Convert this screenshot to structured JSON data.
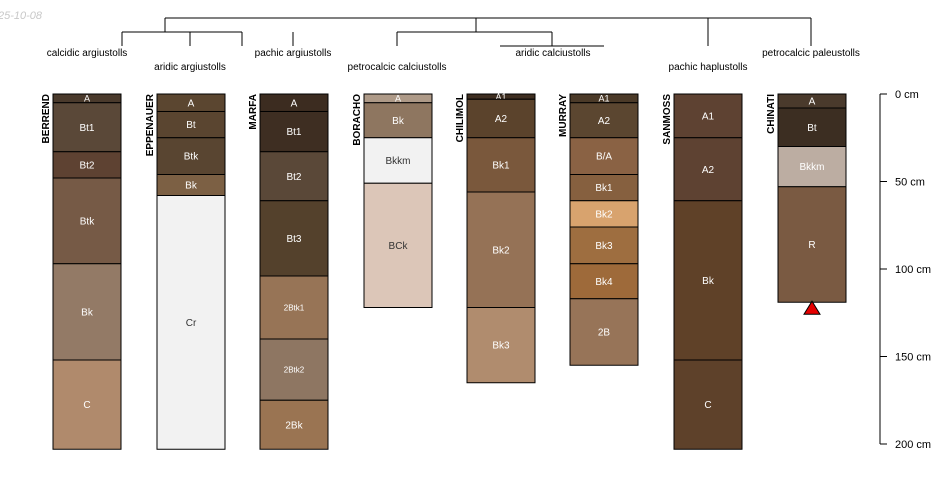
{
  "date_stamp": "25-10-08",
  "chart_data": {
    "type": "soil-profile-sketch",
    "depth_axis": {
      "unit": "cm",
      "min": 0,
      "max": 200,
      "ticks": [
        0,
        50,
        100,
        150,
        200
      ]
    },
    "taxonomic_groups": [
      {
        "name": "calcidic argiustolls",
        "profiles": [
          "BERREND"
        ]
      },
      {
        "name": "aridic argiustolls",
        "profiles": [
          "EPPENAUER"
        ]
      },
      {
        "name": "pachic argiustolls",
        "profiles": [
          "MARFA"
        ]
      },
      {
        "name": "petrocalcic calciustolls",
        "profiles": [
          "BORACHO"
        ]
      },
      {
        "name": "aridic calciustolls",
        "profiles": [
          "CHILIMOL",
          "MURRAY"
        ]
      },
      {
        "name": "pachic haplustolls",
        "profiles": [
          "SANMOSS"
        ]
      },
      {
        "name": "petrocalcic paleustolls",
        "profiles": [
          "CHINATI"
        ]
      }
    ],
    "profiles": [
      {
        "name": "BERREND",
        "horizons": [
          {
            "name": "A",
            "top": 0,
            "bottom": 5,
            "color": "#4a3a2c"
          },
          {
            "name": "Bt1",
            "top": 5,
            "bottom": 33,
            "color": "#5a4838"
          },
          {
            "name": "Bt2",
            "top": 33,
            "bottom": 48,
            "color": "#5e4232"
          },
          {
            "name": "Btk",
            "top": 48,
            "bottom": 97,
            "color": "#765a46"
          },
          {
            "name": "Bk",
            "top": 97,
            "bottom": 152,
            "color": "#937a66"
          },
          {
            "name": "C",
            "top": 152,
            "bottom": 203,
            "color": "#b08a6c"
          }
        ]
      },
      {
        "name": "EPPENAUER",
        "horizons": [
          {
            "name": "A",
            "top": 0,
            "bottom": 10,
            "color": "#5b4630"
          },
          {
            "name": "Bt",
            "top": 10,
            "bottom": 25,
            "color": "#5a4530"
          },
          {
            "name": "Btk",
            "top": 25,
            "bottom": 46,
            "color": "#594531"
          },
          {
            "name": "Bk",
            "top": 46,
            "bottom": 58,
            "color": "#7c6044"
          },
          {
            "name": "Cr",
            "top": 58,
            "bottom": 203,
            "color": "#f2f2f2"
          }
        ]
      },
      {
        "name": "MARFA",
        "horizons": [
          {
            "name": "A",
            "top": 0,
            "bottom": 10,
            "color": "#3c2c20"
          },
          {
            "name": "Bt1",
            "top": 10,
            "bottom": 33,
            "color": "#3e2e22"
          },
          {
            "name": "Bt2",
            "top": 33,
            "bottom": 61,
            "color": "#5a4838"
          },
          {
            "name": "Bt3",
            "top": 61,
            "bottom": 104,
            "color": "#54412c"
          },
          {
            "name": "2Btk1",
            "top": 104,
            "bottom": 140,
            "color": "#977456"
          },
          {
            "name": "2Btk2",
            "top": 140,
            "bottom": 175,
            "color": "#8e7662"
          },
          {
            "name": "2Bk",
            "top": 175,
            "bottom": 203,
            "color": "#9a7452"
          }
        ]
      },
      {
        "name": "BORACHO",
        "horizons": [
          {
            "name": "A",
            "top": 0,
            "bottom": 5,
            "color": "#ae9a88"
          },
          {
            "name": "Bk",
            "top": 5,
            "bottom": 25,
            "color": "#8e7660"
          },
          {
            "name": "Bkkm",
            "top": 25,
            "bottom": 51,
            "color": "#f2f2f2"
          },
          {
            "name": "BCk",
            "top": 51,
            "bottom": 122,
            "color": "#dcc6b8"
          }
        ]
      },
      {
        "name": "CHILIMOL",
        "horizons": [
          {
            "name": "A1",
            "top": 0,
            "bottom": 3,
            "color": "#3e2e20"
          },
          {
            "name": "A2",
            "top": 3,
            "bottom": 25,
            "color": "#5b432c"
          },
          {
            "name": "Bk1",
            "top": 25,
            "bottom": 56,
            "color": "#7a583c"
          },
          {
            "name": "Bk2",
            "top": 56,
            "bottom": 122,
            "color": "#957256"
          },
          {
            "name": "Bk3",
            "top": 122,
            "bottom": 165,
            "color": "#b08c6e"
          }
        ]
      },
      {
        "name": "MURRAY",
        "horizons": [
          {
            "name": "A1",
            "top": 0,
            "bottom": 5,
            "color": "#4b3a28"
          },
          {
            "name": "A2",
            "top": 5,
            "bottom": 25,
            "color": "#5b4630"
          },
          {
            "name": "B/A",
            "top": 25,
            "bottom": 46,
            "color": "#8a6244"
          },
          {
            "name": "Bk1",
            "top": 46,
            "bottom": 61,
            "color": "#86603f"
          },
          {
            "name": "Bk2",
            "top": 61,
            "bottom": 76,
            "color": "#d8a36e"
          },
          {
            "name": "Bk3",
            "top": 76,
            "bottom": 97,
            "color": "#9e6e40"
          },
          {
            "name": "Bk4",
            "top": 97,
            "bottom": 117,
            "color": "#9e6a3a"
          },
          {
            "name": "2B",
            "top": 117,
            "bottom": 155,
            "color": "#977458"
          }
        ]
      },
      {
        "name": "SANMOSS",
        "horizons": [
          {
            "name": "A1",
            "top": 0,
            "bottom": 25,
            "color": "#5e4232"
          },
          {
            "name": "A2",
            "top": 25,
            "bottom": 61,
            "color": "#5e4232"
          },
          {
            "name": "Bk",
            "top": 61,
            "bottom": 152,
            "color": "#5f4128"
          },
          {
            "name": "C",
            "top": 152,
            "bottom": 203,
            "color": "#5e412a"
          }
        ]
      },
      {
        "name": "CHINATI",
        "horizons": [
          {
            "name": "A",
            "top": 0,
            "bottom": 8,
            "color": "#4a3a2c"
          },
          {
            "name": "Bt",
            "top": 8,
            "bottom": 30,
            "color": "#3c2e22"
          },
          {
            "name": "Bkkm",
            "top": 30,
            "bottom": 53,
            "color": "#bcada2"
          },
          {
            "name": "R",
            "top": 53,
            "bottom": 119,
            "color": "#7a5a42"
          }
        ]
      }
    ],
    "bedrock_marker": {
      "profile": "CHINATI",
      "depth": 119,
      "color": "#e60000"
    }
  }
}
